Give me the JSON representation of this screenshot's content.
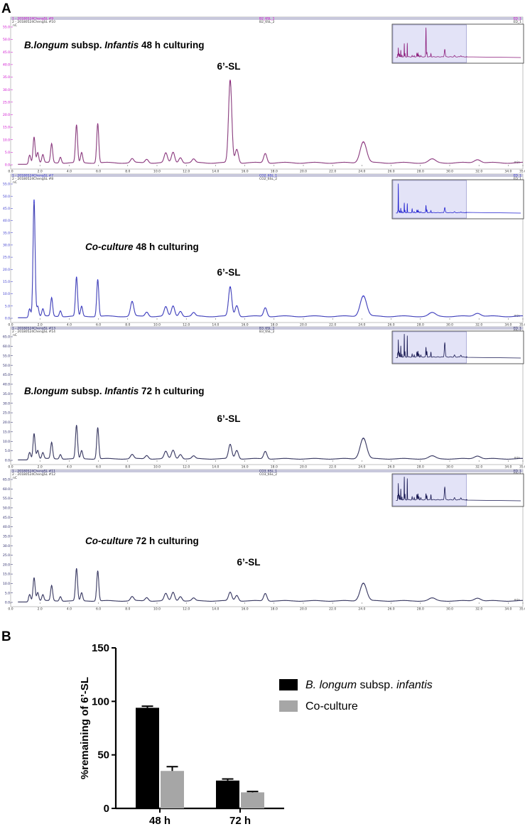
{
  "panel_a_letter": "A",
  "panel_b_letter": "B",
  "chart_data": [
    {
      "type": "line",
      "panel": "A",
      "x_ticks": [
        "0.0",
        "2.0",
        "4.0",
        "6.0",
        "8.0",
        "10.0",
        "12.0",
        "14.0",
        "16.0",
        "18.0",
        "20.0",
        "22.0",
        "24.0",
        "26.0",
        "28.0",
        "30.0",
        "32.0",
        "34.0",
        "35.0"
      ],
      "x_unit": "min",
      "xlim": [
        0,
        35
      ],
      "chromatograms": [
        {
          "title_parts": [
            {
              "text": "B.longum",
              "italic": true
            },
            {
              "text": " subsp. ",
              "italic": false
            },
            {
              "text": "Infantis",
              "italic": true
            },
            {
              "text": " 48 h culturing",
              "italic": false
            }
          ],
          "annotation": "6’-SL",
          "header_lines": [
            {
              "left": "1 - 20180524ChengSL #9",
              "mid": "B2_6SL_1",
              "right": "ED_1"
            },
            {
              "left": "2 - 20180524ChengSL #10",
              "mid": "B2_6SL_2",
              "right": "ED_1"
            }
          ],
          "y_unit": "nC",
          "y_ticks": [
            "0.0",
            "5.0",
            "10.0",
            "15.0",
            "20.0",
            "25.0",
            "30.0",
            "35.0",
            "40.0",
            "45.0",
            "50.0",
            "55.0"
          ],
          "ylim": [
            0,
            55
          ],
          "color": "#8b1a7a",
          "tick_color": "#cc00cc",
          "peaks": [
            [
              1.3,
              3.2
            ],
            [
              1.6,
              10.5
            ],
            [
              1.85,
              4.2
            ],
            [
              2.2,
              3.2
            ],
            [
              2.8,
              7.5
            ],
            [
              3.4,
              2.4
            ],
            [
              4.5,
              15.0
            ],
            [
              4.85,
              4.0
            ],
            [
              5.95,
              15.8
            ],
            [
              8.3,
              1.6
            ],
            [
              9.3,
              1.5
            ],
            [
              10.6,
              3.8
            ],
            [
              11.1,
              4.2
            ],
            [
              11.6,
              2.2
            ],
            [
              12.5,
              1.4
            ],
            [
              15.0,
              33.0
            ],
            [
              15.45,
              5.5
            ],
            [
              17.4,
              3.8
            ],
            [
              24.1,
              8.5
            ],
            [
              28.8,
              1.4
            ],
            [
              31.9,
              1.4
            ]
          ]
        },
        {
          "title_parts": [
            {
              "text": "Co-culture",
              "italic": true
            },
            {
              "text": " 48 h culturing",
              "italic": false
            }
          ],
          "annotation": "6’-SL",
          "header_lines": [
            {
              "left": "1 - 20180524ChengSL #7",
              "mid": "CO2_6SL_1",
              "right": "ED_1"
            },
            {
              "left": "2 - 20180524ChengSL #8",
              "mid": "CO2_6SL_2",
              "right": "ED_1"
            }
          ],
          "y_unit": "nC",
          "y_ticks": [
            "0.0",
            "5.0",
            "10.0",
            "15.0",
            "20.0",
            "25.0",
            "30.0",
            "35.0",
            "40.0",
            "45.0",
            "50.0",
            "55.0"
          ],
          "ylim": [
            0,
            55
          ],
          "color": "#1f1fd0",
          "tick_color": "#3333cc",
          "peaks": [
            [
              1.3,
              3.2
            ],
            [
              1.6,
              48.0
            ],
            [
              1.85,
              4.2
            ],
            [
              2.2,
              3.0
            ],
            [
              2.8,
              7.5
            ],
            [
              3.4,
              2.4
            ],
            [
              4.5,
              16.0
            ],
            [
              4.85,
              4.0
            ],
            [
              5.95,
              15.2
            ],
            [
              8.3,
              6.0
            ],
            [
              9.3,
              1.8
            ],
            [
              10.6,
              3.8
            ],
            [
              11.1,
              4.2
            ],
            [
              11.6,
              2.2
            ],
            [
              12.5,
              1.4
            ],
            [
              15.0,
              12.0
            ],
            [
              15.45,
              4.5
            ],
            [
              17.4,
              3.6
            ],
            [
              24.1,
              8.5
            ],
            [
              28.8,
              1.4
            ],
            [
              31.9,
              1.4
            ]
          ]
        },
        {
          "title_parts": [
            {
              "text": "B.longum",
              "italic": true
            },
            {
              "text": " subsp. ",
              "italic": false
            },
            {
              "text": "Infantis",
              "italic": true
            },
            {
              "text": " 72 h culturing",
              "italic": false
            }
          ],
          "annotation": "6’-SL",
          "header_lines": [
            {
              "left": "1 - 20180524ChengSL #13",
              "mid": "B3_6SL_1",
              "right": "ED_1"
            },
            {
              "left": "2 - 20180524ChengSL #14",
              "mid": "B3_6SL_2",
              "right": "ED_1"
            }
          ],
          "y_unit": "nC",
          "y_ticks": [
            "0.0",
            "5.0",
            "10.0",
            "15.0",
            "20.0",
            "25.0",
            "30.0",
            "35.0",
            "40.0",
            "45.0",
            "50.0",
            "55.0",
            "60.0",
            "65.0"
          ],
          "ylim": [
            0,
            65
          ],
          "color": "#151550",
          "tick_color": "#222266",
          "peaks": [
            [
              1.3,
              3.5
            ],
            [
              1.6,
              13.5
            ],
            [
              1.85,
              4.5
            ],
            [
              2.2,
              3.2
            ],
            [
              2.8,
              8.5
            ],
            [
              3.4,
              2.4
            ],
            [
              4.5,
              17.5
            ],
            [
              4.85,
              4.2
            ],
            [
              5.95,
              16.5
            ],
            [
              8.3,
              2.2
            ],
            [
              9.3,
              1.8
            ],
            [
              10.6,
              3.8
            ],
            [
              11.1,
              4.5
            ],
            [
              11.6,
              2.4
            ],
            [
              12.5,
              1.4
            ],
            [
              15.0,
              7.5
            ],
            [
              15.45,
              4.5
            ],
            [
              17.4,
              4.0
            ],
            [
              24.1,
              11.0
            ],
            [
              28.8,
              1.4
            ],
            [
              31.9,
              1.6
            ]
          ]
        },
        {
          "title_parts": [
            {
              "text": "Co-culture",
              "italic": true
            },
            {
              "text": " 72 h culturing",
              "italic": false
            }
          ],
          "annotation": "6’-SL",
          "header_lines": [
            {
              "left": "1 - 20180524ChengSL #11",
              "mid": "CO3_6SL_1",
              "right": "ED_1"
            },
            {
              "left": "2 - 20180524ChengSL #12",
              "mid": "CO3_6SL_2",
              "right": "ED_1"
            }
          ],
          "y_unit": "nC",
          "y_ticks": [
            "0.0",
            "5.0",
            "10.0",
            "15.0",
            "20.0",
            "25.0",
            "30.0",
            "35.0",
            "40.0",
            "45.0",
            "50.0",
            "55.0",
            "60.0",
            "65.0"
          ],
          "ylim": [
            0,
            65
          ],
          "color": "#151550",
          "tick_color": "#222266",
          "peaks": [
            [
              1.3,
              3.5
            ],
            [
              1.6,
              12.5
            ],
            [
              1.85,
              4.5
            ],
            [
              2.2,
              3.2
            ],
            [
              2.8,
              8.0
            ],
            [
              3.4,
              2.4
            ],
            [
              4.5,
              17.0
            ],
            [
              4.85,
              4.2
            ],
            [
              5.95,
              16.0
            ],
            [
              8.3,
              2.2
            ],
            [
              9.3,
              1.8
            ],
            [
              10.6,
              3.8
            ],
            [
              11.1,
              4.5
            ],
            [
              11.6,
              2.4
            ],
            [
              12.5,
              1.4
            ],
            [
              15.0,
              4.5
            ],
            [
              15.45,
              3.0
            ],
            [
              17.4,
              4.0
            ],
            [
              24.1,
              9.5
            ],
            [
              28.8,
              1.4
            ],
            [
              31.9,
              1.6
            ]
          ]
        }
      ]
    },
    {
      "type": "bar",
      "panel": "B",
      "categories": [
        "48 h",
        "72 h"
      ],
      "series": [
        {
          "name_parts": [
            {
              "text": "B. longum",
              "italic": true
            },
            {
              "text": " subsp. ",
              "italic": false
            },
            {
              "text": "infantis",
              "italic": true
            }
          ],
          "values": [
            94,
            26
          ],
          "errors": [
            1.5,
            1.5
          ],
          "color": "#000000"
        },
        {
          "name_parts": [
            {
              "text": "Co-culture",
              "italic": false
            }
          ],
          "values": [
            35,
            15
          ],
          "errors": [
            4,
            0.8
          ],
          "color": "#a6a6a6"
        }
      ],
      "ylabel": "%remaining of 6’-SL",
      "y_ticks": [
        "0",
        "50",
        "100",
        "150"
      ],
      "ylim": [
        0,
        150
      ],
      "legend_position": "top-right"
    }
  ]
}
